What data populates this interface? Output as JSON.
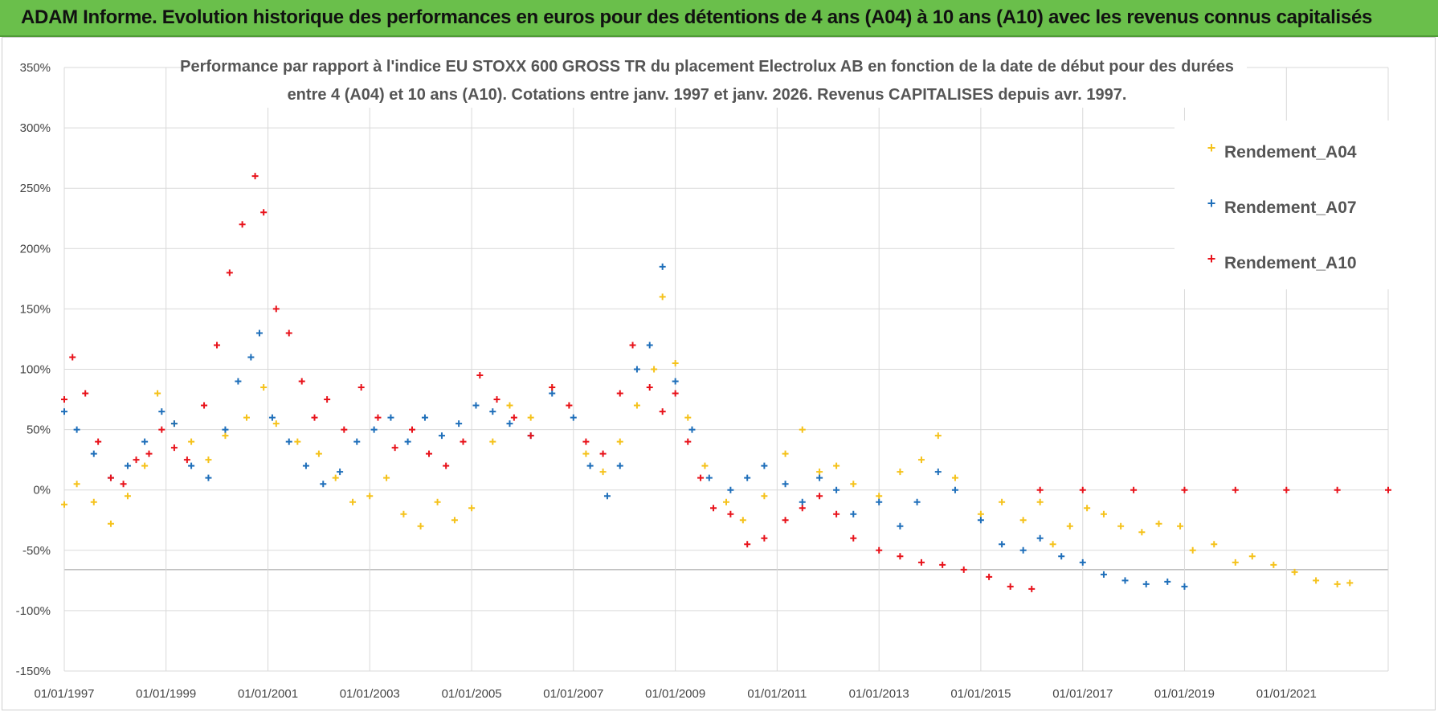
{
  "header": {
    "banner": "ADAM Informe. Evolution historique des performances en euros pour des détentions de 4 ans (A04) à 10 ans (A10) avec les revenus connus capitalisés"
  },
  "colors": {
    "A04": "#f5c21b",
    "A07": "#1f6fba",
    "A10": "#e8131b",
    "banner": "#6abf4b"
  },
  "chart_data": {
    "type": "scatter",
    "title_lines": [
      "Performance par rapport à l'indice EU STOXX 600 GROSS TR  du placement Electrolux AB en fonction de la date de début pour des durées",
      "entre 4 (A04) et 10 ans (A10).  Cotations entre janv. 1997 et janv. 2026. Revenus CAPITALISES depuis avr. 1997."
    ],
    "x_axis": {
      "range": [
        "1997-01-01",
        "2023-01-01"
      ],
      "tick_labels": [
        "01/01/1997",
        "01/01/1999",
        "01/01/2001",
        "01/01/2003",
        "01/01/2005",
        "01/01/2007",
        "01/01/2009",
        "01/01/2011",
        "01/01/2013",
        "01/01/2015",
        "01/01/2017",
        "01/01/2019",
        "01/01/2021"
      ]
    },
    "y_axis": {
      "range": [
        -150,
        350
      ],
      "unit": "%",
      "tick_labels": [
        "350%",
        "300%",
        "250%",
        "200%",
        "150%",
        "100%",
        "50%",
        "0%",
        "-50%",
        "-100%",
        "-150%"
      ]
    },
    "grid": true,
    "legend_position": "top-right",
    "series": [
      {
        "name": "Rendement_A04",
        "points": [
          [
            "1997-01-01",
            -12
          ],
          [
            "1997-04-01",
            5
          ],
          [
            "1997-08-01",
            -10
          ],
          [
            "1997-12-01",
            -28
          ],
          [
            "1998-04-01",
            -5
          ],
          [
            "1998-08-01",
            20
          ],
          [
            "1998-11-01",
            80
          ],
          [
            "1999-03-01",
            55
          ],
          [
            "1999-07-01",
            40
          ],
          [
            "1999-11-01",
            25
          ],
          [
            "2000-03-01",
            45
          ],
          [
            "2000-08-01",
            60
          ],
          [
            "2000-12-01",
            85
          ],
          [
            "2001-03-01",
            55
          ],
          [
            "2001-08-01",
            40
          ],
          [
            "2002-01-01",
            30
          ],
          [
            "2002-05-01",
            10
          ],
          [
            "2002-09-01",
            -10
          ],
          [
            "2003-01-01",
            -5
          ],
          [
            "2003-05-01",
            10
          ],
          [
            "2003-09-01",
            -20
          ],
          [
            "2004-01-01",
            -30
          ],
          [
            "2004-05-01",
            -10
          ],
          [
            "2004-09-01",
            -25
          ],
          [
            "2005-01-01",
            -15
          ],
          [
            "2005-06-01",
            40
          ],
          [
            "2005-10-01",
            70
          ],
          [
            "2006-03-01",
            60
          ],
          [
            "2006-08-01",
            85
          ],
          [
            "2006-12-01",
            70
          ],
          [
            "2007-04-01",
            30
          ],
          [
            "2007-08-01",
            15
          ],
          [
            "2007-12-01",
            40
          ],
          [
            "2008-04-01",
            70
          ],
          [
            "2008-08-01",
            100
          ],
          [
            "2008-10-01",
            160
          ],
          [
            "2009-01-01",
            105
          ],
          [
            "2009-04-01",
            60
          ],
          [
            "2009-08-01",
            20
          ],
          [
            "2010-01-01",
            -10
          ],
          [
            "2010-05-01",
            -25
          ],
          [
            "2010-10-01",
            -5
          ],
          [
            "2011-03-01",
            30
          ],
          [
            "2011-07-01",
            50
          ],
          [
            "2011-11-01",
            15
          ],
          [
            "2012-03-01",
            20
          ],
          [
            "2012-07-01",
            5
          ],
          [
            "2013-01-01",
            -5
          ],
          [
            "2013-06-01",
            15
          ],
          [
            "2013-11-01",
            25
          ],
          [
            "2014-03-01",
            45
          ],
          [
            "2014-07-01",
            10
          ],
          [
            "2015-01-01",
            -20
          ],
          [
            "2015-06-01",
            -10
          ],
          [
            "2015-11-01",
            -25
          ],
          [
            "2016-03-01",
            -10
          ],
          [
            "2016-06-01",
            -45
          ],
          [
            "2016-10-01",
            -30
          ],
          [
            "2017-02-01",
            -15
          ],
          [
            "2017-06-01",
            -20
          ],
          [
            "2017-10-01",
            -30
          ],
          [
            "2018-03-01",
            -35
          ],
          [
            "2018-07-01",
            -28
          ],
          [
            "2018-12-01",
            -30
          ],
          [
            "2019-03-01",
            -50
          ],
          [
            "2019-08-01",
            -45
          ],
          [
            "2020-01-01",
            -60
          ],
          [
            "2020-05-01",
            -55
          ],
          [
            "2020-10-01",
            -62
          ],
          [
            "2021-03-01",
            -68
          ],
          [
            "2021-08-01",
            -75
          ],
          [
            "2022-01-01",
            -78
          ],
          [
            "2022-04-01",
            -77
          ]
        ]
      },
      {
        "name": "Rendement_A07",
        "points": [
          [
            "1997-01-01",
            65
          ],
          [
            "1997-04-01",
            50
          ],
          [
            "1997-08-01",
            30
          ],
          [
            "1997-12-01",
            10
          ],
          [
            "1998-04-01",
            20
          ],
          [
            "1998-08-01",
            40
          ],
          [
            "1998-12-01",
            65
          ],
          [
            "1999-03-01",
            55
          ],
          [
            "1999-07-01",
            20
          ],
          [
            "1999-11-01",
            10
          ],
          [
            "2000-03-01",
            50
          ],
          [
            "2000-06-01",
            90
          ],
          [
            "2000-09-01",
            110
          ],
          [
            "2000-11-01",
            130
          ],
          [
            "2001-02-01",
            60
          ],
          [
            "2001-06-01",
            40
          ],
          [
            "2001-10-01",
            20
          ],
          [
            "2002-02-01",
            5
          ],
          [
            "2002-06-01",
            15
          ],
          [
            "2002-10-01",
            40
          ],
          [
            "2003-02-01",
            50
          ],
          [
            "2003-06-01",
            60
          ],
          [
            "2003-10-01",
            40
          ],
          [
            "2004-02-01",
            60
          ],
          [
            "2004-06-01",
            45
          ],
          [
            "2004-10-01",
            55
          ],
          [
            "2005-02-01",
            70
          ],
          [
            "2005-06-01",
            65
          ],
          [
            "2005-10-01",
            55
          ],
          [
            "2006-03-01",
            45
          ],
          [
            "2006-08-01",
            80
          ],
          [
            "2007-01-01",
            60
          ],
          [
            "2007-05-01",
            20
          ],
          [
            "2007-09-01",
            -5
          ],
          [
            "2007-12-01",
            20
          ],
          [
            "2008-04-01",
            100
          ],
          [
            "2008-07-01",
            120
          ],
          [
            "2008-10-01",
            185
          ],
          [
            "2009-01-01",
            90
          ],
          [
            "2009-05-01",
            50
          ],
          [
            "2009-09-01",
            10
          ],
          [
            "2010-02-01",
            0
          ],
          [
            "2010-06-01",
            10
          ],
          [
            "2010-10-01",
            20
          ],
          [
            "2011-03-01",
            5
          ],
          [
            "2011-07-01",
            -10
          ],
          [
            "2011-11-01",
            10
          ],
          [
            "2012-03-01",
            0
          ],
          [
            "2012-07-01",
            -20
          ],
          [
            "2013-01-01",
            -10
          ],
          [
            "2013-06-01",
            -30
          ],
          [
            "2013-10-01",
            -10
          ],
          [
            "2014-03-01",
            15
          ],
          [
            "2014-07-01",
            0
          ],
          [
            "2015-01-01",
            -25
          ],
          [
            "2015-06-01",
            -45
          ],
          [
            "2015-11-01",
            -50
          ],
          [
            "2016-03-01",
            -40
          ],
          [
            "2016-08-01",
            -55
          ],
          [
            "2017-01-01",
            -60
          ],
          [
            "2017-06-01",
            -70
          ],
          [
            "2017-11-01",
            -75
          ],
          [
            "2018-04-01",
            -78
          ],
          [
            "2018-09-01",
            -76
          ],
          [
            "2019-01-01",
            -80
          ]
        ]
      },
      {
        "name": "Rendement_A10",
        "points": [
          [
            "1997-01-01",
            75
          ],
          [
            "1997-03-01",
            110
          ],
          [
            "1997-06-01",
            80
          ],
          [
            "1997-09-01",
            40
          ],
          [
            "1997-12-01",
            10
          ],
          [
            "1998-03-01",
            5
          ],
          [
            "1998-06-01",
            25
          ],
          [
            "1998-09-01",
            30
          ],
          [
            "1998-12-01",
            50
          ],
          [
            "1999-03-01",
            35
          ],
          [
            "1999-06-01",
            25
          ],
          [
            "1999-10-01",
            70
          ],
          [
            "2000-01-01",
            120
          ],
          [
            "2000-04-01",
            180
          ],
          [
            "2000-07-01",
            220
          ],
          [
            "2000-10-01",
            260
          ],
          [
            "2000-12-01",
            230
          ],
          [
            "2001-03-01",
            150
          ],
          [
            "2001-06-01",
            130
          ],
          [
            "2001-09-01",
            90
          ],
          [
            "2001-12-01",
            60
          ],
          [
            "2002-03-01",
            75
          ],
          [
            "2002-07-01",
            50
          ],
          [
            "2002-11-01",
            85
          ],
          [
            "2003-03-01",
            60
          ],
          [
            "2003-07-01",
            35
          ],
          [
            "2003-11-01",
            50
          ],
          [
            "2004-03-01",
            30
          ],
          [
            "2004-07-01",
            20
          ],
          [
            "2004-11-01",
            40
          ],
          [
            "2005-03-01",
            95
          ],
          [
            "2005-07-01",
            75
          ],
          [
            "2005-11-01",
            60
          ],
          [
            "2006-03-01",
            45
          ],
          [
            "2006-08-01",
            85
          ],
          [
            "2006-12-01",
            70
          ],
          [
            "2007-04-01",
            40
          ],
          [
            "2007-08-01",
            30
          ],
          [
            "2007-12-01",
            80
          ],
          [
            "2008-03-01",
            120
          ],
          [
            "2008-07-01",
            85
          ],
          [
            "2008-10-01",
            65
          ],
          [
            "2009-01-01",
            80
          ],
          [
            "2009-04-01",
            40
          ],
          [
            "2009-07-01",
            10
          ],
          [
            "2009-10-01",
            -15
          ],
          [
            "2010-02-01",
            -20
          ],
          [
            "2010-06-01",
            -45
          ],
          [
            "2010-10-01",
            -40
          ],
          [
            "2011-03-01",
            -25
          ],
          [
            "2011-07-01",
            -15
          ],
          [
            "2011-11-01",
            -5
          ],
          [
            "2012-03-01",
            -20
          ],
          [
            "2012-07-01",
            -40
          ],
          [
            "2013-01-01",
            -50
          ],
          [
            "2013-06-01",
            -55
          ],
          [
            "2013-11-01",
            -60
          ],
          [
            "2014-04-01",
            -62
          ],
          [
            "2014-09-01",
            -66
          ],
          [
            "2015-03-01",
            -72
          ],
          [
            "2015-08-01",
            -80
          ],
          [
            "2016-01-01",
            -82
          ],
          [
            "2016-03-01",
            0
          ],
          [
            "2017-01-01",
            0
          ],
          [
            "2018-01-01",
            0
          ],
          [
            "2019-01-01",
            0
          ],
          [
            "2020-01-01",
            0
          ],
          [
            "2021-01-01",
            0
          ],
          [
            "2022-01-01",
            0
          ],
          [
            "2023-01-01",
            0
          ]
        ]
      }
    ]
  }
}
